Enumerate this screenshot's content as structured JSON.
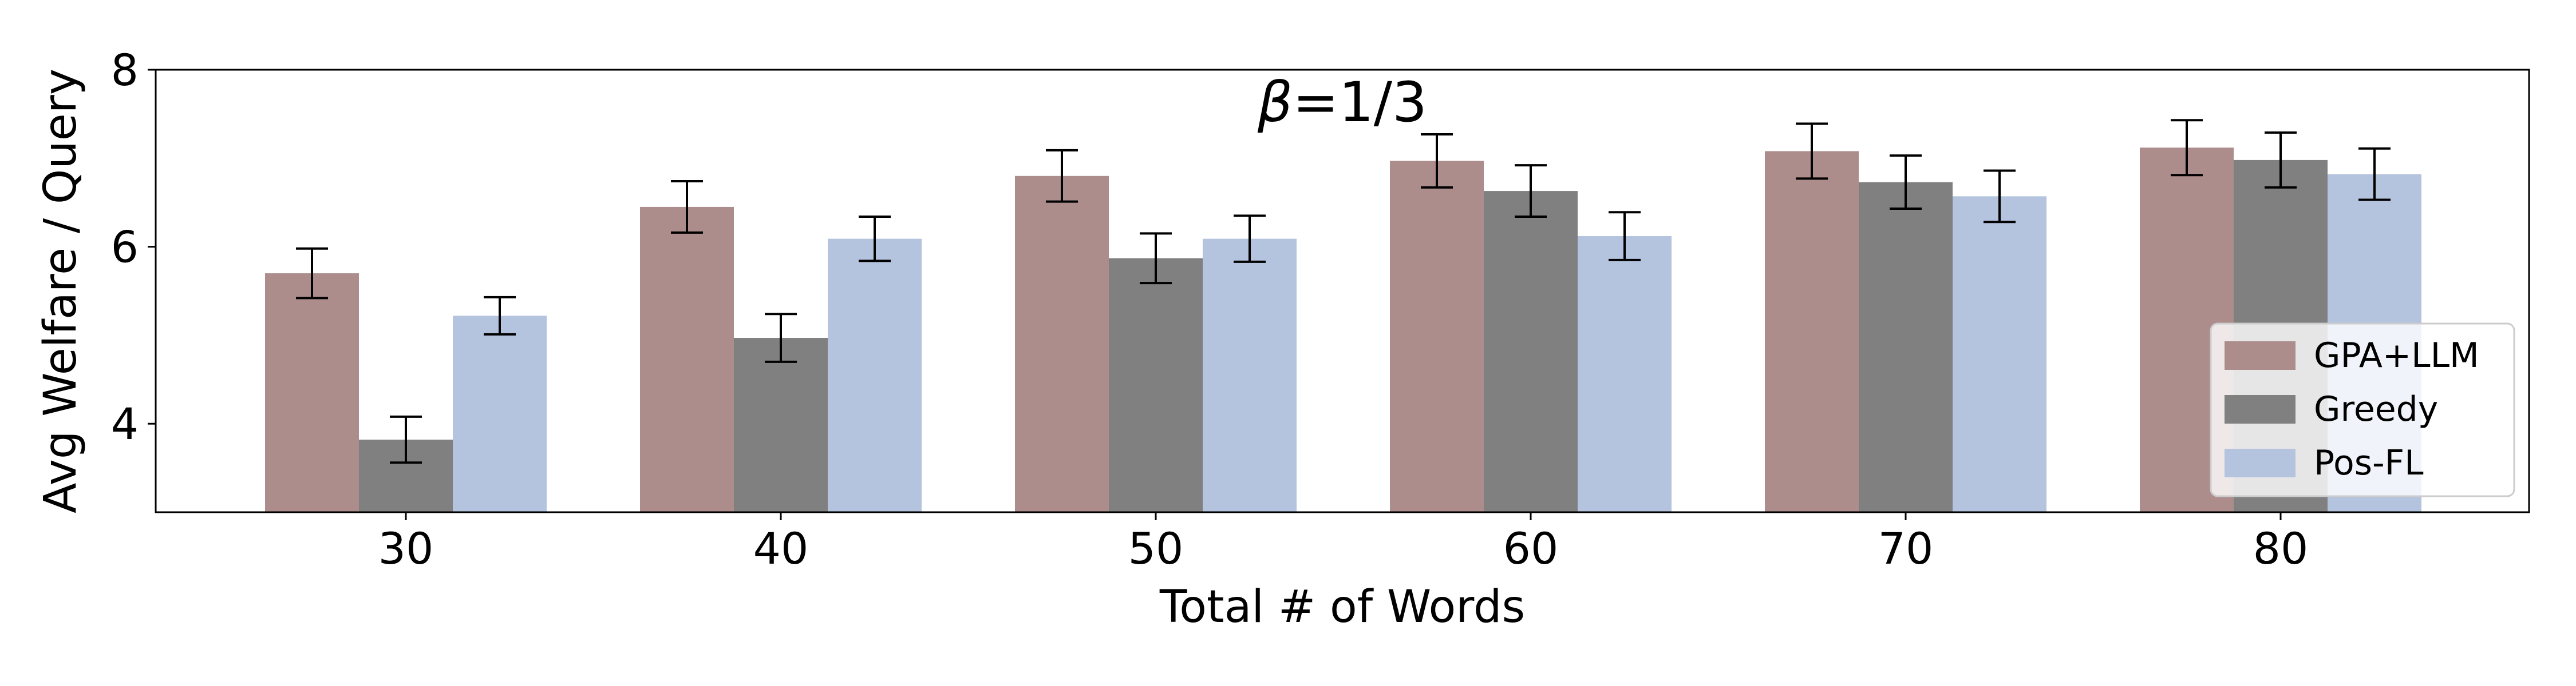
{
  "chart_data": {
    "type": "bar",
    "title": "β=1/3",
    "title_math": {
      "symbol": "β",
      "rest": "=1/3"
    },
    "xlabel": "Total # of Words",
    "ylabel": "Avg Welfare / Query",
    "categories": [
      "30",
      "40",
      "50",
      "60",
      "70",
      "80"
    ],
    "ylim": [
      3,
      8
    ],
    "yticks": [
      "4",
      "6",
      "8"
    ],
    "grid": false,
    "legend_position": "lower-right",
    "series": [
      {
        "name": "GPA+LLM",
        "color": "#ac8d8c",
        "values": [
          5.7,
          6.45,
          6.8,
          6.97,
          7.08,
          7.12
        ],
        "errors": [
          0.28,
          0.29,
          0.29,
          0.3,
          0.31,
          0.31
        ]
      },
      {
        "name": "Greedy",
        "color": "#808080",
        "values": [
          3.82,
          4.97,
          5.87,
          6.63,
          6.73,
          6.98
        ],
        "errors": [
          0.26,
          0.27,
          0.28,
          0.29,
          0.3,
          0.31
        ]
      },
      {
        "name": "Pos-FL",
        "color": "#b4c3de",
        "values": [
          5.22,
          6.09,
          6.09,
          6.12,
          6.57,
          6.82
        ],
        "errors": [
          0.21,
          0.25,
          0.26,
          0.27,
          0.29,
          0.29
        ]
      }
    ]
  }
}
